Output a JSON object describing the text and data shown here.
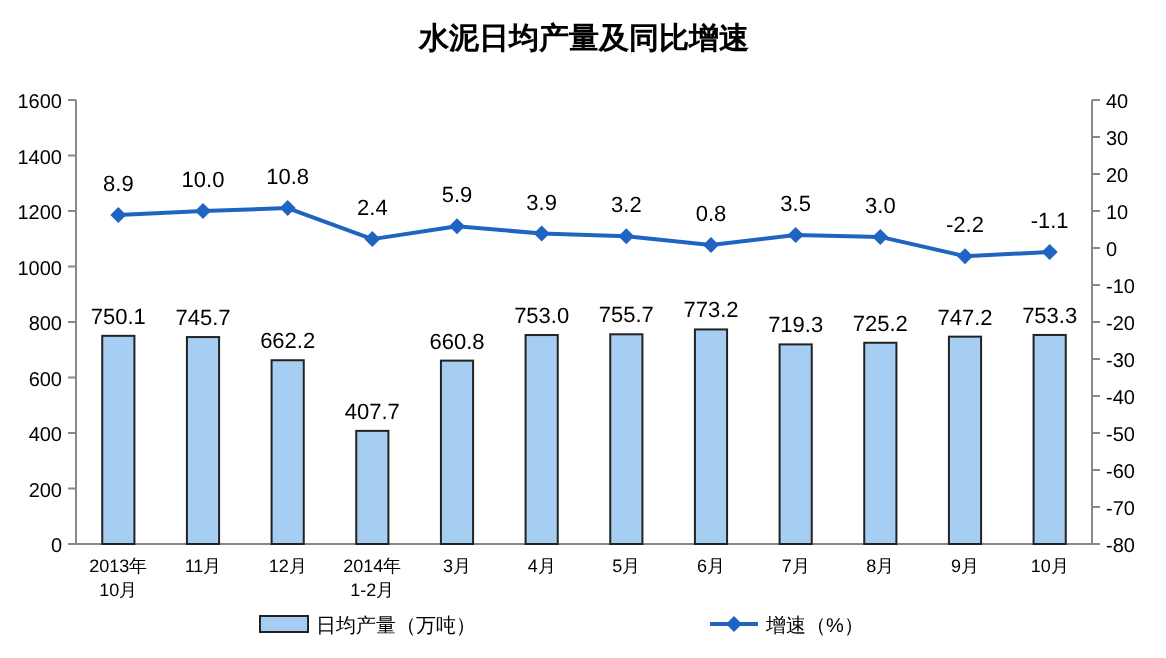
{
  "chart_data": {
    "type": "bar",
    "title": "水泥日均产量及同比增速",
    "categories": [
      "2013年\n10月",
      "11月",
      "12月",
      "2014年\n1-2月",
      "3月",
      "4月",
      "5月",
      "6月",
      "7月",
      "8月",
      "9月",
      "10月"
    ],
    "series": [
      {
        "name": "日均产量（万吨）",
        "color": "#a6cdf2",
        "values": [
          750.1,
          745.7,
          662.2,
          407.7,
          660.8,
          753.0,
          755.7,
          773.2,
          719.3,
          725.2,
          747.2,
          753.3
        ],
        "value_labels": [
          "750.1",
          "745.7",
          "662.2",
          "407.7",
          "660.8",
          "753.0",
          "755.7",
          "773.2",
          "719.3",
          "725.2",
          "747.2",
          "753.3"
        ]
      },
      {
        "name": "增速（%）",
        "type": "line",
        "axis": "y2",
        "color": "#1e64c0",
        "marker": "diamond",
        "values": [
          8.9,
          10.0,
          10.8,
          2.4,
          5.9,
          3.9,
          3.2,
          0.8,
          3.5,
          3.0,
          -2.2,
          -1.1
        ],
        "value_labels": [
          "8.9",
          "10.0",
          "10.8",
          "2.4",
          "5.9",
          "3.9",
          "3.2",
          "0.8",
          "3.5",
          "3.0",
          "-2.2",
          "-1.1"
        ]
      }
    ],
    "ylim": [
      0,
      1600
    ],
    "yticks": [
      0,
      200,
      400,
      600,
      800,
      1000,
      1200,
      1400,
      1600
    ],
    "y2lim": [
      -80,
      40
    ],
    "y2ticks": [
      -80,
      -70,
      -60,
      -50,
      -40,
      -30,
      -20,
      -10,
      0,
      10,
      20,
      30,
      40
    ],
    "legend": "bottom",
    "grid": false
  }
}
